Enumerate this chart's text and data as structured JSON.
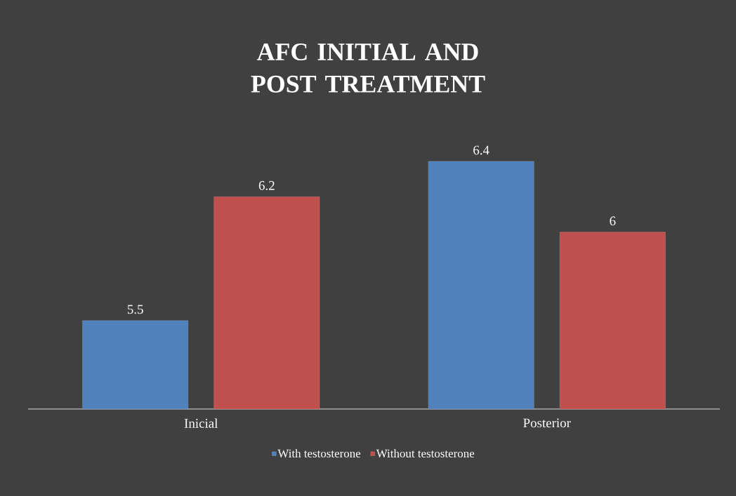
{
  "chart_data": {
    "type": "bar",
    "title": "AFC INITIAL AND POST TREATMENT",
    "categories": [
      "Inicial",
      "Posterior"
    ],
    "series": [
      {
        "name": "With testosterone",
        "color": "#4f81bd",
        "values": [
          5.5,
          6.4
        ]
      },
      {
        "name": "Without testosterone",
        "color": "#c0504d",
        "values": [
          6.2,
          6
        ]
      }
    ],
    "ylim": [
      5,
      6.4
    ],
    "data_labels": true,
    "legend": "bottom"
  }
}
